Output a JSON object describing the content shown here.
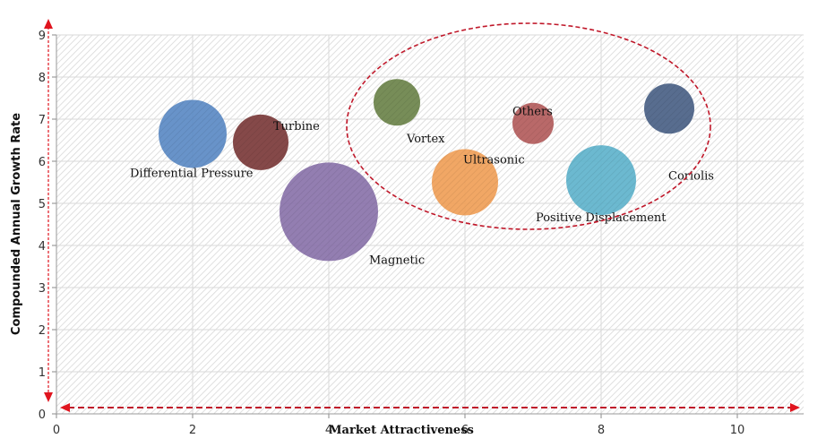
{
  "chart_data": {
    "type": "scatter",
    "subtype": "bubble",
    "title": "",
    "xlabel": "Market Attractiveness",
    "ylabel": "Compounded Annual Growth Rate",
    "xlim": [
      0,
      11
    ],
    "ylim": [
      0,
      9
    ],
    "x_ticks": [
      0,
      2,
      4,
      6,
      8,
      10
    ],
    "y_ticks": [
      0,
      1,
      2,
      3,
      4,
      5,
      6,
      7,
      8,
      9
    ],
    "grid": true,
    "legend": "none",
    "series": [
      {
        "name": "Differential Pressure",
        "x": 2,
        "y": 6.65,
        "size": 38,
        "color": "#5b8ac4"
      },
      {
        "name": "Turbine",
        "x": 3,
        "y": 6.45,
        "size": 31,
        "color": "#7b3a3a"
      },
      {
        "name": "Magnetic",
        "x": 4,
        "y": 4.8,
        "size": 55,
        "color": "#8a73aa"
      },
      {
        "name": "Vortex",
        "x": 5,
        "y": 7.4,
        "size": 26,
        "color": "#6b834a"
      },
      {
        "name": "Ultrasonic",
        "x": 6,
        "y": 5.5,
        "size": 37,
        "color": "#f0a058"
      },
      {
        "name": "Others",
        "x": 7,
        "y": 6.9,
        "size": 23,
        "color": "#b35c5c"
      },
      {
        "name": "Positive Displacement",
        "x": 8,
        "y": 5.55,
        "size": 39,
        "color": "#5fb3cc"
      },
      {
        "name": "Coriolis",
        "x": 9,
        "y": 7.25,
        "size": 28,
        "color": "#4a6185"
      }
    ],
    "annotations": [
      {
        "type": "dashed-ellipse",
        "color": "#c0182a",
        "note": "highlight group: Vortex, Ultrasonic, Others, Positive Displacement, Coriolis"
      },
      {
        "type": "dashed-arrow",
        "direction": "vertical",
        "color": "#e0141e"
      },
      {
        "type": "dashed-arrow",
        "direction": "horizontal",
        "color": "#e0141e"
      }
    ]
  }
}
